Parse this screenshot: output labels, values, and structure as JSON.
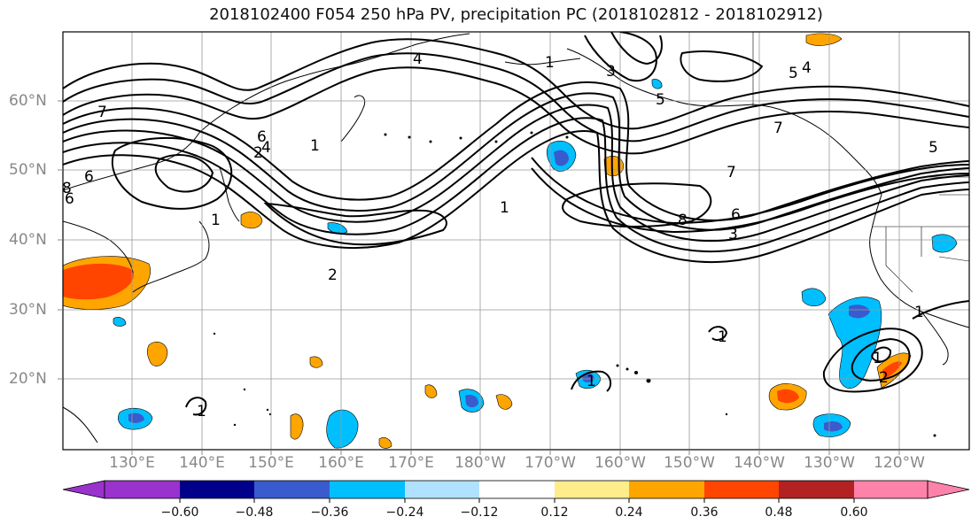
{
  "title": "2018102400 F054 250 hPa PV, precipitation PC (2018102812 - 2018102912)",
  "lat_labels": [
    "60°N",
    "50°N",
    "40°N",
    "30°N",
    "20°N"
  ],
  "lon_labels": [
    "130°E",
    "140°E",
    "150°E",
    "160°E",
    "170°E",
    "180°W",
    "170°W",
    "160°W",
    "150°W",
    "140°W",
    "130°W",
    "120°W"
  ],
  "colorbar": {
    "ticks": [
      "−0.60",
      "−0.48",
      "−0.36",
      "−0.24",
      "−0.12",
      "0.12",
      "0.24",
      "0.36",
      "0.48",
      "0.60"
    ],
    "colors": [
      "#9a32cd",
      "#00008b",
      "#3a5bcd",
      "#00bfff",
      "#b0e2ff",
      "#ffffff",
      "#ffec8b",
      "#ffa500",
      "#ff4500",
      "#b22222",
      "#ff82ab"
    ]
  },
  "contour_labels": [
    "7",
    "6",
    "6",
    "4",
    "2",
    "1",
    "2",
    "4",
    "5",
    "4",
    "5",
    "7",
    "7",
    "8",
    "6",
    "3",
    "1",
    "5",
    "1",
    "1",
    "1",
    "1",
    "1",
    "2",
    "1",
    "1",
    "3",
    "6",
    "8"
  ]
}
